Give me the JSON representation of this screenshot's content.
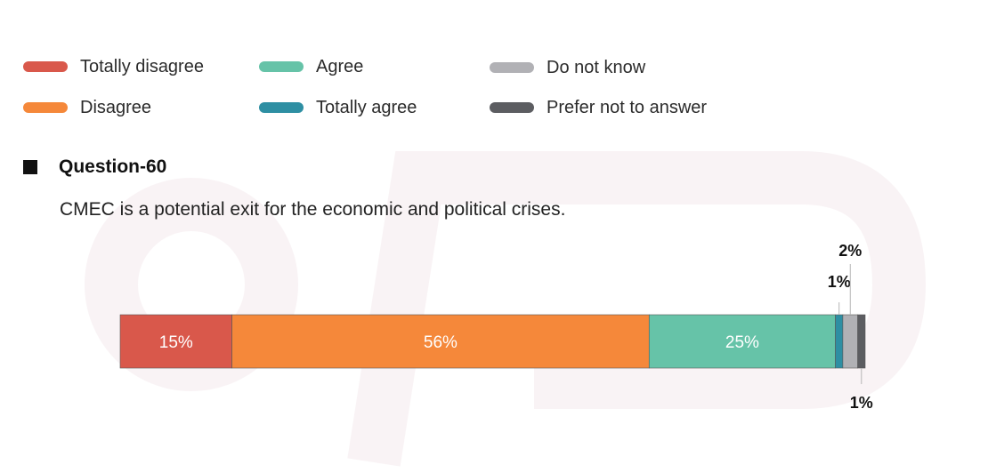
{
  "legend": {
    "items": [
      {
        "label": "Totally disagree",
        "color": "#d9584b"
      },
      {
        "label": "Disagree",
        "color": "#f5883a"
      },
      {
        "label": "Agree",
        "color": "#66c3a8"
      },
      {
        "label": "Totally agree",
        "color": "#2e8fa3"
      },
      {
        "label": "Do not know",
        "color": "#b1b1b5"
      },
      {
        "label": "Prefer not to answer",
        "color": "#5c5d61"
      }
    ]
  },
  "question": {
    "title": "Question-60",
    "text": "CMEC is a potential exit for the economic and political crises."
  },
  "chart_data": {
    "type": "bar",
    "orientation": "horizontal-stacked",
    "categories": [
      "CMEC is a potential exit for the economic and political crises."
    ],
    "series": [
      {
        "name": "Totally disagree",
        "values": [
          15
        ],
        "label": "15%",
        "color": "#d9584b"
      },
      {
        "name": "Disagree",
        "values": [
          56
        ],
        "label": "56%",
        "color": "#f5883a"
      },
      {
        "name": "Agree",
        "values": [
          25
        ],
        "label": "25%",
        "color": "#66c3a8"
      },
      {
        "name": "Totally agree",
        "values": [
          1
        ],
        "label": "1%",
        "color": "#2e8fa3"
      },
      {
        "name": "Do not know",
        "values": [
          2
        ],
        "label": "2%",
        "color": "#b1b1b5"
      },
      {
        "name": "Prefer not to answer",
        "values": [
          1
        ],
        "label": "1%",
        "color": "#5c5d61"
      }
    ],
    "xlim": [
      0,
      100
    ],
    "grid": false,
    "legend_position": "top"
  }
}
